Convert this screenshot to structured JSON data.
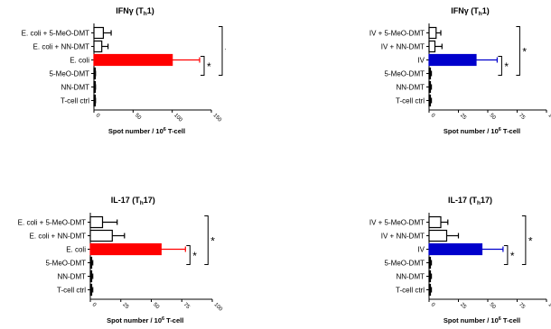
{
  "chart_data": [
    {
      "type": "bar",
      "orientation": "horizontal",
      "title": "IFNγ (T",
      "title_sub": "h",
      "title_end": "1)",
      "categories": [
        "E. coli + 5-MeO-DMT",
        "E. coli + NN-DMT",
        "E. coli",
        "5-MeO-DMT",
        "NN-DMT",
        "T-cell ctrl"
      ],
      "values": [
        12,
        10,
        100,
        1,
        1,
        1
      ],
      "errors": [
        10,
        8,
        35,
        1,
        1,
        1
      ],
      "fill": [
        "white",
        "white",
        "red",
        "black",
        "black",
        "black"
      ],
      "xlim": [
        0,
        150
      ],
      "xticks": [
        0,
        50,
        100,
        150
      ],
      "xlabel": "Spot number / 10",
      "xlabel_sup": "6",
      "xlabel_end": " T-cell",
      "significance": [
        "*",
        "*"
      ]
    },
    {
      "type": "bar",
      "orientation": "horizontal",
      "title": "IFNγ (T",
      "title_sub": "h",
      "title_end": "1)",
      "categories": [
        "IV + 5-MeO-DMT",
        "IV + NN-DMT",
        "IV",
        "5-MeO-DMT",
        "NN-DMT",
        "T-cell ctrl"
      ],
      "values": [
        6,
        5,
        40,
        1,
        1,
        1
      ],
      "errors": [
        4,
        6,
        18,
        1,
        1,
        1
      ],
      "fill": [
        "white",
        "white",
        "blue",
        "black",
        "black",
        "black"
      ],
      "xlim": [
        0,
        100
      ],
      "xticks": [
        0,
        25,
        50,
        75,
        100
      ],
      "xlabel": "Spot number / 10",
      "xlabel_sup": "6",
      "xlabel_end": " T-cell",
      "significance": [
        "*",
        "*"
      ]
    },
    {
      "type": "bar",
      "orientation": "horizontal",
      "title": "IL-17 (T",
      "title_sub": "h",
      "title_end": "17)",
      "categories": [
        "E. coli + 5-MeO-DMT",
        "E. coli + NN-DMT",
        "E. coli",
        "5-MeO-DMT",
        "NN-DMT",
        "T-cell ctrl"
      ],
      "values": [
        10,
        18,
        58,
        1,
        1,
        1
      ],
      "errors": [
        12,
        10,
        20,
        1,
        1,
        1
      ],
      "fill": [
        "white",
        "white",
        "red",
        "black",
        "black",
        "black"
      ],
      "xlim": [
        0,
        100
      ],
      "xticks": [
        0,
        25,
        50,
        75,
        100
      ],
      "xlabel": "Spot number / 10",
      "xlabel_sup": "6",
      "xlabel_end": " T-cell",
      "significance": [
        "*",
        "*"
      ]
    },
    {
      "type": "bar",
      "orientation": "horizontal",
      "title": "IL-17 (T",
      "title_sub": "h",
      "title_end": "17)",
      "categories": [
        "IV + 5-MeO-DMT",
        "IV + NN-DMT",
        "IV",
        "5-MeO-DMT",
        "NN-DMT",
        "T-cell ctrl"
      ],
      "values": [
        10,
        15,
        45,
        1,
        1,
        1
      ],
      "errors": [
        6,
        10,
        18,
        1,
        1,
        1
      ],
      "fill": [
        "white",
        "white",
        "blue",
        "black",
        "black",
        "black"
      ],
      "xlim": [
        0,
        100
      ],
      "xticks": [
        0,
        25,
        50,
        75,
        100
      ],
      "xlabel": "Spot number / 10",
      "xlabel_sup": "6",
      "xlabel_end": " T-cell",
      "significance": [
        "*",
        "*"
      ]
    }
  ]
}
